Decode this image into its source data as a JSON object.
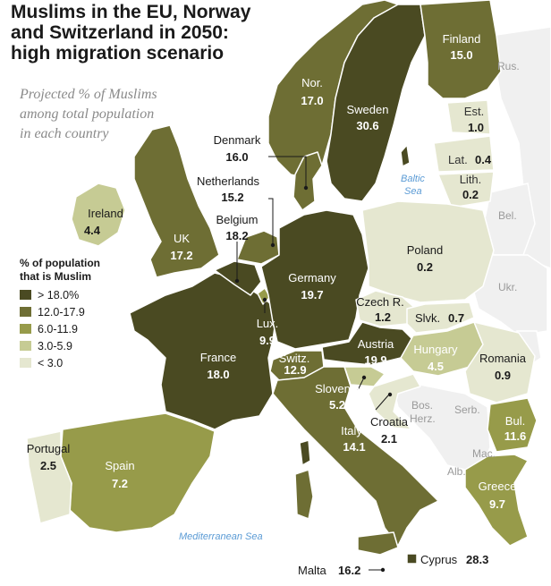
{
  "title": "Muslims in the EU, Norway\nand Switzerland in 2050:\nhigh migration scenario",
  "subtitle": "Projected % of Muslims\namong total population\nin each country",
  "legend": {
    "title": "% of population\nthat is Muslim",
    "items": [
      {
        "label": "> 18.0%",
        "color": "#4a4a22"
      },
      {
        "label": "12.0-17.9",
        "color": "#6e6e34"
      },
      {
        "label": "6.0-11.9",
        "color": "#979b4a"
      },
      {
        "label": "3.0-5.9",
        "color": "#c6cb94"
      },
      {
        "label": "< 3.0",
        "color": "#e5e7d0"
      }
    ]
  },
  "colors": {
    "very_high": "#4a4a22",
    "high": "#6e6e34",
    "mid": "#979b4a",
    "low": "#c6cb94",
    "very_low": "#e5e7d0",
    "non_eu": "#f0f0f0",
    "sea": "#ffffff",
    "border": "#ffffff"
  },
  "countries": [
    {
      "name": "Finland",
      "value": "15.0"
    },
    {
      "name": "Nor.",
      "value": "17.0"
    },
    {
      "name": "Sweden",
      "value": "30.6"
    },
    {
      "name": "Est.",
      "value": "1.0"
    },
    {
      "name": "Lat.",
      "value": "0.4"
    },
    {
      "name": "Lith.",
      "value": "0.2"
    },
    {
      "name": "Denmark",
      "value": "16.0"
    },
    {
      "name": "Netherlands",
      "value": "15.2"
    },
    {
      "name": "Belgium",
      "value": "18.2"
    },
    {
      "name": "Ireland",
      "value": "4.4"
    },
    {
      "name": "UK",
      "value": "17.2"
    },
    {
      "name": "Poland",
      "value": "0.2"
    },
    {
      "name": "Germany",
      "value": "19.7"
    },
    {
      "name": "Czech R.",
      "value": "1.2"
    },
    {
      "name": "Slvk.",
      "value": "0.7"
    },
    {
      "name": "Lux.",
      "value": "9.9"
    },
    {
      "name": "France",
      "value": "18.0"
    },
    {
      "name": "Austria",
      "value": "19.9"
    },
    {
      "name": "Hungary",
      "value": "4.5"
    },
    {
      "name": "Romania",
      "value": "0.9"
    },
    {
      "name": "Switz.",
      "value": "12.9"
    },
    {
      "name": "Slovenia",
      "value": "5.2"
    },
    {
      "name": "Croatia",
      "value": "2.1"
    },
    {
      "name": "Bul.",
      "value": "11.6"
    },
    {
      "name": "Italy",
      "value": "14.1"
    },
    {
      "name": "Portugal",
      "value": "2.5"
    },
    {
      "name": "Spain",
      "value": "7.2"
    },
    {
      "name": "Greece",
      "value": "9.7"
    },
    {
      "name": "Cyprus",
      "value": "28.3"
    },
    {
      "name": "Malta",
      "value": "16.2"
    }
  ],
  "other_labels": {
    "rus": "Rus.",
    "bel": "Bel.",
    "ukr": "Ukr.",
    "bos": "Bos.",
    "herz": "Herz.",
    "serb": "Serb.",
    "mac": "Mac.",
    "alb": "Alb.",
    "baltic": "Baltic\nSea",
    "med": "Mediterranean Sea"
  }
}
